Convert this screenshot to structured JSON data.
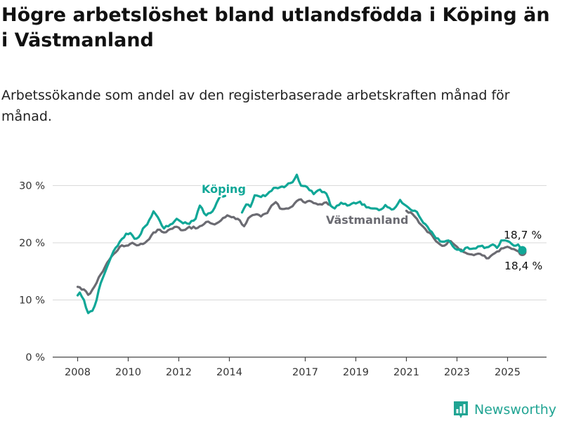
{
  "title": "Högre arbetslöshet bland utlandsfödda i Köping än i Västmanland",
  "subtitle": "Arbetssökande som andel av den registerbaserade arbetskraften månad för månad.",
  "brand": {
    "name": "Newsworthy",
    "icon": "newsworthy-logo-icon"
  },
  "colors": {
    "koping": "#10a797",
    "vastmanland": "#6b6b72",
    "grid": "#d9d9d9",
    "axis": "#444444"
  },
  "chart_data": {
    "type": "line",
    "title": "Högre arbetslöshet bland utlandsfödda i Köping än i Västmanland",
    "subtitle": "Arbetssökande som andel av den registerbaserade arbetskraften månad för månad.",
    "x_start": "2008-01",
    "x_end": "2025-08",
    "xlim": [
      2007.8,
      2026.5
    ],
    "ylim": [
      0,
      32
    ],
    "y_ticks": [
      {
        "value": 0,
        "label": "0 %"
      },
      {
        "value": 10,
        "label": "10 %"
      },
      {
        "value": 20,
        "label": "20 %"
      },
      {
        "value": 30,
        "label": "30 %"
      }
    ],
    "x_ticks": [
      {
        "value": 2008,
        "label": "2008"
      },
      {
        "value": 2010,
        "label": "2010"
      },
      {
        "value": 2012,
        "label": "2012"
      },
      {
        "value": 2014,
        "label": "2014"
      },
      {
        "value": 2017,
        "label": "2017"
      },
      {
        "value": 2019,
        "label": "2019"
      },
      {
        "value": 2021,
        "label": "2021"
      },
      {
        "value": 2023,
        "label": "2023"
      },
      {
        "value": 2025,
        "label": "2025"
      }
    ],
    "grid": true,
    "series": [
      {
        "name": "Västmanland",
        "end_label": "18,4 %",
        "anchors": [
          [
            "2008-01",
            12.3
          ],
          [
            "2008-03",
            11.8
          ],
          [
            "2008-05",
            11.5
          ],
          [
            "2008-06",
            10.9
          ],
          [
            "2008-08",
            11.8
          ],
          [
            "2008-10",
            13.0
          ],
          [
            "2008-12",
            14.5
          ],
          [
            "2009-03",
            16.5
          ],
          [
            "2009-06",
            18.0
          ],
          [
            "2009-09",
            19.3
          ],
          [
            "2009-12",
            19.5
          ],
          [
            "2010-03",
            20.0
          ],
          [
            "2010-06",
            19.6
          ],
          [
            "2010-09",
            20.0
          ],
          [
            "2010-12",
            21.3
          ],
          [
            "2011-03",
            22.3
          ],
          [
            "2011-06",
            21.8
          ],
          [
            "2011-09",
            22.4
          ],
          [
            "2011-12",
            22.8
          ],
          [
            "2012-03",
            22.2
          ],
          [
            "2012-06",
            22.8
          ],
          [
            "2012-09",
            22.5
          ],
          [
            "2012-12",
            23.0
          ],
          [
            "2013-03",
            23.7
          ],
          [
            "2013-06",
            23.2
          ],
          [
            "2013-09",
            23.9
          ],
          [
            "2013-12",
            24.8
          ],
          [
            "2014-03",
            24.5
          ],
          [
            "2014-06",
            23.9
          ],
          [
            "2014-08",
            22.9
          ],
          [
            "2014-10",
            24.3
          ],
          [
            "2015-01",
            24.9
          ],
          [
            "2015-04",
            24.6
          ],
          [
            "2015-07",
            25.2
          ],
          [
            "2015-09",
            26.5
          ],
          [
            "2015-11",
            27.1
          ],
          [
            "2016-01",
            26.0
          ],
          [
            "2016-04",
            26.0
          ],
          [
            "2016-07",
            26.4
          ],
          [
            "2016-09",
            27.3
          ],
          [
            "2016-11",
            27.6
          ],
          [
            "2017-01",
            27.0
          ],
          [
            "2017-04",
            27.2
          ],
          [
            "2017-07",
            26.7
          ],
          [
            "2017-10",
            27.0
          ],
          [
            "2018-01",
            26.6
          ]
        ],
        "anchors2": [
          [
            "2021-01",
            25.6
          ],
          [
            "2021-04",
            25.0
          ],
          [
            "2021-07",
            23.5
          ],
          [
            "2021-10",
            22.4
          ],
          [
            "2022-01",
            21.4
          ],
          [
            "2022-04",
            20.0
          ],
          [
            "2022-07",
            19.5
          ],
          [
            "2022-10",
            20.3
          ],
          [
            "2023-01",
            19.3
          ],
          [
            "2023-04",
            18.4
          ],
          [
            "2023-07",
            18.0
          ],
          [
            "2023-10",
            18.0
          ],
          [
            "2024-01",
            17.8
          ],
          [
            "2024-04",
            17.3
          ],
          [
            "2024-07",
            18.2
          ],
          [
            "2024-10",
            19.0
          ],
          [
            "2025-01",
            19.3
          ],
          [
            "2025-04",
            18.9
          ],
          [
            "2025-06",
            18.5
          ],
          [
            "2025-08",
            18.4
          ]
        ]
      },
      {
        "name": "Köping",
        "end_label": "18,7 %",
        "anchors": [
          [
            "2008-01",
            10.8
          ],
          [
            "2008-02",
            11.3
          ],
          [
            "2008-04",
            10.0
          ],
          [
            "2008-06",
            7.7
          ],
          [
            "2008-08",
            8.1
          ],
          [
            "2008-10",
            10.0
          ],
          [
            "2008-12",
            13.0
          ],
          [
            "2009-03",
            15.8
          ],
          [
            "2009-06",
            18.5
          ],
          [
            "2009-09",
            20.2
          ],
          [
            "2009-12",
            21.6
          ],
          [
            "2010-02",
            21.7
          ],
          [
            "2010-04",
            20.7
          ],
          [
            "2010-06",
            21.0
          ],
          [
            "2010-08",
            22.5
          ],
          [
            "2010-10",
            23.2
          ],
          [
            "2011-01",
            25.5
          ],
          [
            "2011-03",
            24.5
          ],
          [
            "2011-06",
            22.5
          ],
          [
            "2011-09",
            23.2
          ],
          [
            "2011-12",
            24.2
          ],
          [
            "2012-03",
            23.4
          ],
          [
            "2012-06",
            23.3
          ],
          [
            "2012-09",
            24.2
          ],
          [
            "2012-11",
            26.5
          ],
          [
            "2013-02",
            24.8
          ],
          [
            "2013-05",
            25.5
          ],
          [
            "2013-07",
            27.0
          ],
          [
            "2013-09",
            28.3
          ],
          [
            "2013-11",
            28.2
          ]
        ],
        "anchors2": [
          [
            "2014-07",
            25.3
          ],
          [
            "2014-09",
            26.7
          ],
          [
            "2014-11",
            26.3
          ],
          [
            "2015-01",
            28.3
          ],
          [
            "2015-04",
            28.0
          ],
          [
            "2015-07",
            28.5
          ],
          [
            "2015-10",
            29.6
          ],
          [
            "2016-01",
            29.7
          ],
          [
            "2016-04",
            30.0
          ],
          [
            "2016-07",
            30.6
          ],
          [
            "2016-09",
            31.9
          ],
          [
            "2016-11",
            30.0
          ],
          [
            "2017-02",
            29.7
          ],
          [
            "2017-05",
            28.5
          ],
          [
            "2017-08",
            29.3
          ],
          [
            "2017-11",
            28.6
          ],
          [
            "2018-01",
            26.5
          ],
          [
            "2018-03",
            26.0
          ],
          [
            "2018-06",
            27.0
          ],
          [
            "2018-09",
            26.5
          ],
          [
            "2018-12",
            27.0
          ],
          [
            "2019-03",
            27.2
          ],
          [
            "2019-06",
            26.2
          ],
          [
            "2019-09",
            26.0
          ],
          [
            "2019-12",
            25.7
          ],
          [
            "2020-03",
            26.6
          ],
          [
            "2020-06",
            25.8
          ],
          [
            "2020-08",
            26.3
          ],
          [
            "2020-10",
            27.5
          ],
          [
            "2020-12",
            26.7
          ],
          [
            "2021-03",
            25.8
          ],
          [
            "2021-06",
            25.4
          ],
          [
            "2021-09",
            23.5
          ],
          [
            "2021-12",
            22.2
          ],
          [
            "2022-03",
            20.8
          ],
          [
            "2022-06",
            20.2
          ],
          [
            "2022-09",
            20.4
          ],
          [
            "2022-12",
            19.0
          ],
          [
            "2023-03",
            18.5
          ],
          [
            "2023-06",
            19.2
          ],
          [
            "2023-09",
            19.0
          ],
          [
            "2023-12",
            19.4
          ],
          [
            "2024-03",
            19.2
          ],
          [
            "2024-06",
            19.7
          ],
          [
            "2024-08",
            19.1
          ],
          [
            "2024-10",
            20.4
          ],
          [
            "2025-01",
            20.3
          ],
          [
            "2025-04",
            19.5
          ],
          [
            "2025-06",
            19.7
          ],
          [
            "2025-08",
            18.7
          ]
        ]
      }
    ]
  }
}
